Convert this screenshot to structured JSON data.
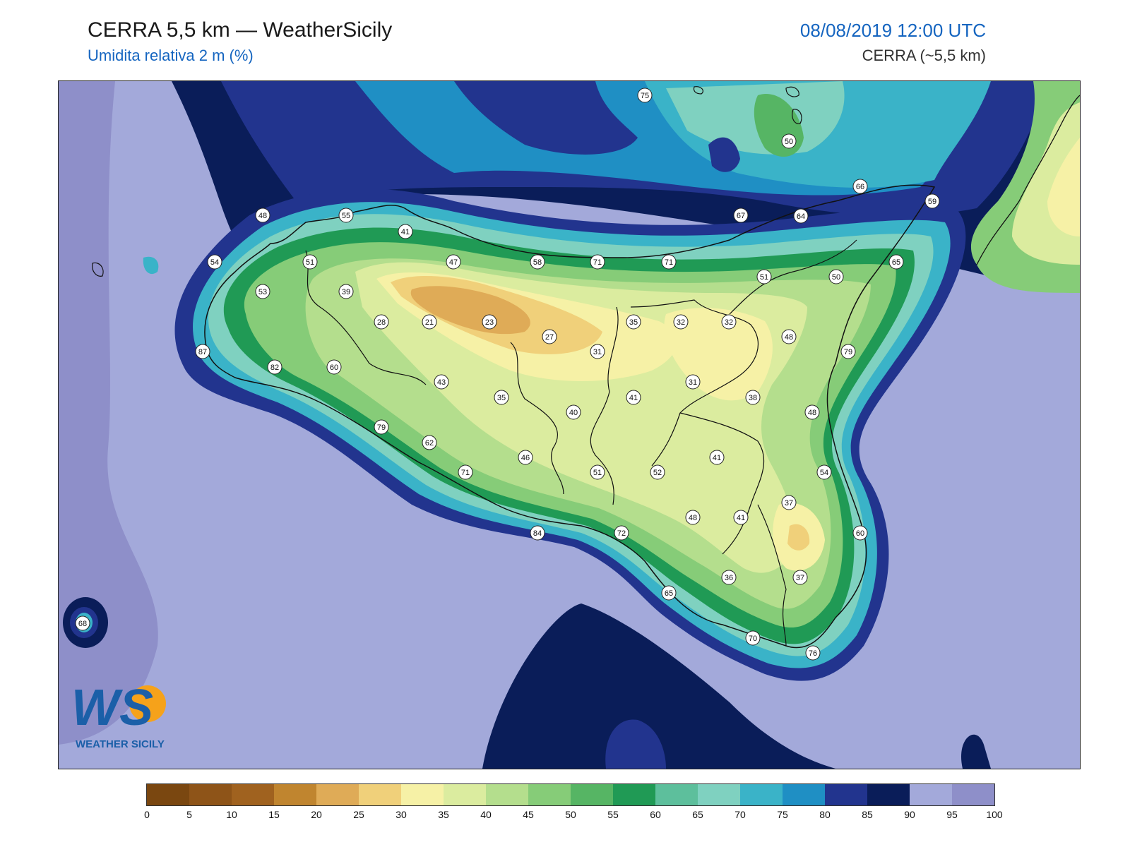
{
  "header": {
    "title": "CERRA 5,5 km — WeatherSicily",
    "subtitle": "Umidita relativa 2 m (%)",
    "datetime": "08/08/2019 12:00 UTC",
    "model": "CERRA (~5,5 km)"
  },
  "legend": {
    "ticks": [
      "0",
      "5",
      "10",
      "15",
      "20",
      "25",
      "30",
      "35",
      "40",
      "45",
      "50",
      "55",
      "60",
      "65",
      "70",
      "75",
      "80",
      "85",
      "90",
      "95",
      "100"
    ],
    "colors": [
      "#7a4710",
      "#8e5418",
      "#a0621f",
      "#c0852f",
      "#dfab57",
      "#f0d07a",
      "#f6f1a6",
      "#dbec9f",
      "#b4de8d",
      "#86cc78",
      "#56b564",
      "#209a55",
      "#5dbf9c",
      "#7fd1c0",
      "#3ab3c8",
      "#1f8fc4",
      "#22348e",
      "#0a1d59",
      "#a3a9da",
      "#8e8fc9"
    ]
  },
  "logo": {
    "mark": "WS",
    "text": "WEATHER SICILY"
  },
  "stations": [
    {
      "v": "75"
    },
    {
      "v": "50"
    },
    {
      "v": "66"
    },
    {
      "v": "48"
    },
    {
      "v": "55"
    },
    {
      "v": "41"
    },
    {
      "v": "67"
    },
    {
      "v": "64"
    },
    {
      "v": "59"
    },
    {
      "v": "54"
    },
    {
      "v": "51"
    },
    {
      "v": "47"
    },
    {
      "v": "58"
    },
    {
      "v": "71"
    },
    {
      "v": "71"
    },
    {
      "v": "51"
    },
    {
      "v": "50"
    },
    {
      "v": "65"
    },
    {
      "v": "53"
    },
    {
      "v": "39"
    },
    {
      "v": "28"
    },
    {
      "v": "21"
    },
    {
      "v": "23"
    },
    {
      "v": "35"
    },
    {
      "v": "32"
    },
    {
      "v": "32"
    },
    {
      "v": "27"
    },
    {
      "v": "31"
    },
    {
      "v": "48"
    },
    {
      "v": "87"
    },
    {
      "v": "82"
    },
    {
      "v": "60"
    },
    {
      "v": "43"
    },
    {
      "v": "35"
    },
    {
      "v": "31"
    },
    {
      "v": "41"
    },
    {
      "v": "38"
    },
    {
      "v": "79"
    },
    {
      "v": "40"
    },
    {
      "v": "48"
    },
    {
      "v": "79"
    },
    {
      "v": "62"
    },
    {
      "v": "46"
    },
    {
      "v": "41"
    },
    {
      "v": "71"
    },
    {
      "v": "51"
    },
    {
      "v": "52"
    },
    {
      "v": "54"
    },
    {
      "v": "37"
    },
    {
      "v": "48"
    },
    {
      "v": "41"
    },
    {
      "v": "84"
    },
    {
      "v": "72"
    },
    {
      "v": "60"
    },
    {
      "v": "36"
    },
    {
      "v": "37"
    },
    {
      "v": "65"
    },
    {
      "v": "68"
    },
    {
      "v": "70"
    },
    {
      "v": "76"
    }
  ]
}
